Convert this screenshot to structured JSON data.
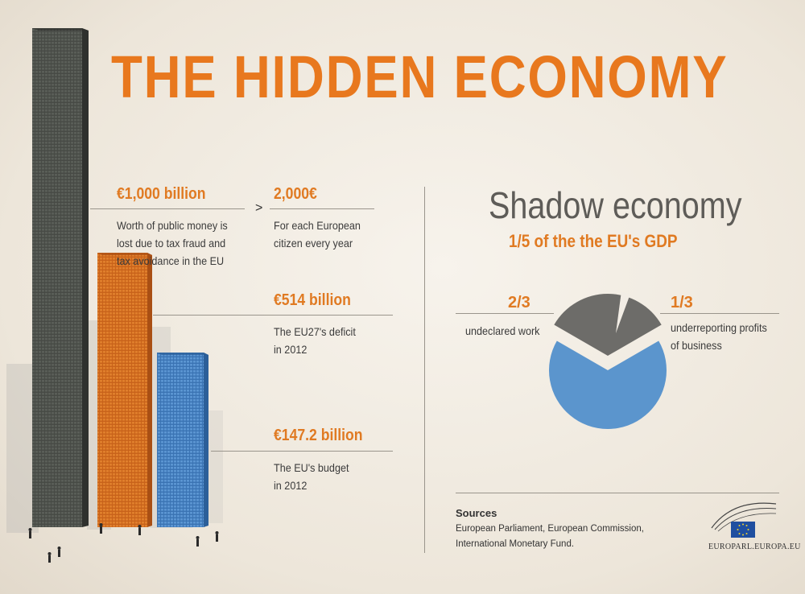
{
  "title": "THE HIDDEN ECONOMY",
  "stats": {
    "public_money": {
      "amount": "€1,000 billion",
      "desc": [
        "Worth of public money is",
        "lost due to tax fraud and",
        "tax avoidance in the EU"
      ]
    },
    "per_citizen": {
      "amount": "2,000€",
      "desc": [
        "For each European",
        "citizen every year"
      ]
    },
    "comparator": ">",
    "deficit": {
      "amount": "€514 billion",
      "desc": [
        "The EU27's deficit",
        "in 2012"
      ]
    },
    "budget": {
      "amount": "€147.2 billion",
      "desc": [
        "The EU's budget",
        "in 2012"
      ]
    }
  },
  "shadow": {
    "title": "Shadow economy",
    "gdp_line": "1/5  of the the EU's GDP",
    "left_fraction": "2/3",
    "left_label": "undeclared work",
    "right_fraction": "1/3",
    "right_label": [
      "underreporting profits",
      "of business"
    ]
  },
  "sources": {
    "heading": "Sources",
    "lines": [
      "European Parliament, European Commission,",
      "International Monetary Fund."
    ]
  },
  "logo_text": "EUROPARL.EUROPA.EU",
  "colors": {
    "title": "#e8781e",
    "accent": "#e07a22",
    "tower_dark": "#4a4d48",
    "tower_orange": "#d9721f",
    "tower_blue": "#4a86c6",
    "pie_blue": "#5b95cd",
    "pie_grey": "#6d6c69"
  },
  "chart_data": [
    {
      "type": "bar",
      "categories": [
        "€1,000 billion",
        "€514 billion",
        "€147.2 billion"
      ],
      "values": [
        1000,
        514,
        147.2
      ]
    },
    {
      "type": "pie",
      "categories": [
        "undeclared work",
        "underreporting profits of business"
      ],
      "values": [
        0.6667,
        0.3333
      ],
      "value_labels": [
        "2/3",
        "1/3"
      ]
    }
  ]
}
